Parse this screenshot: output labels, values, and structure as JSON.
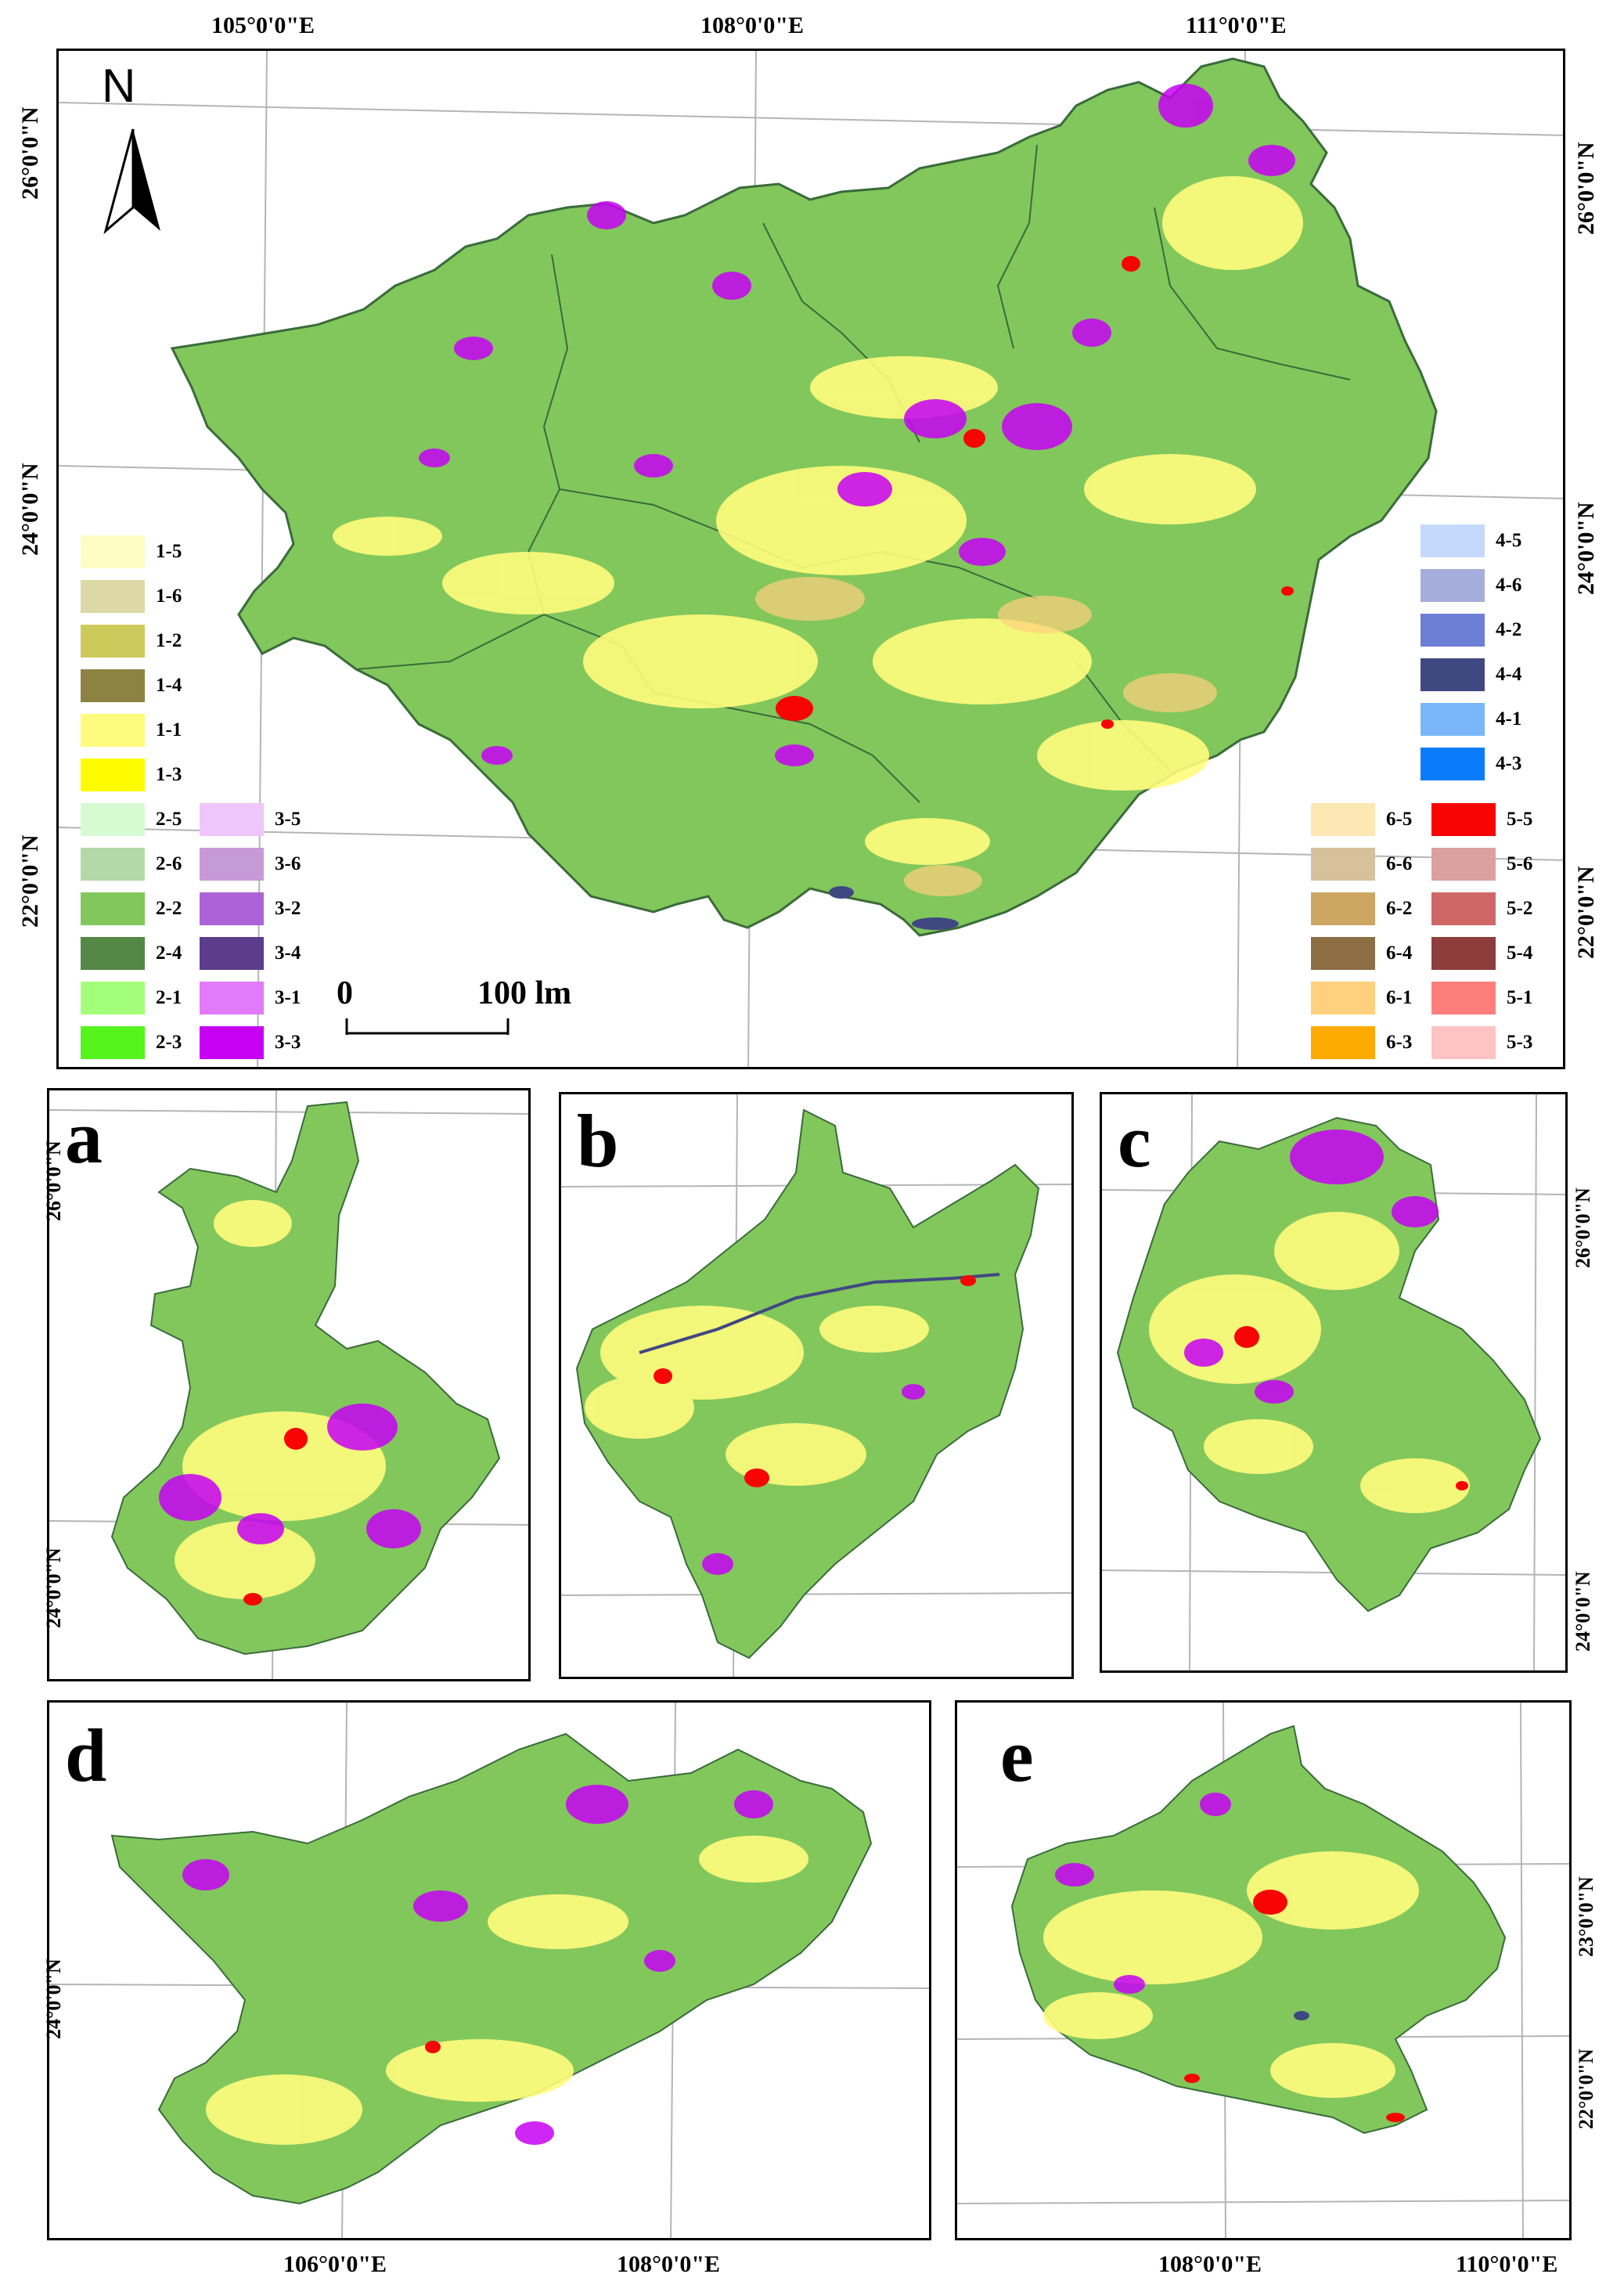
{
  "main_map": {
    "top_lon_labels": [
      "105°0'0\"E",
      "108°0'0\"E",
      "111°0'0\"E"
    ],
    "left_lat_labels": [
      "26°0'0\"N",
      "24°0'0\"N",
      "22°0'0\"N"
    ],
    "right_lat_labels": [
      "26°0'0\"N",
      "24°0'0\"N",
      "22°0'0\"N"
    ],
    "north_arrow_label": "N",
    "scale_bar": {
      "start_label": "0",
      "end_label": "100 lm"
    }
  },
  "legend": {
    "group1": [
      {
        "code": "1-5",
        "color": "#fdfdc4"
      },
      {
        "code": "1-6",
        "color": "#dcd9a6"
      },
      {
        "code": "1-2",
        "color": "#cdca5c"
      },
      {
        "code": "1-4",
        "color": "#8c8342"
      },
      {
        "code": "1-1",
        "color": "#fffc7d"
      },
      {
        "code": "1-3",
        "color": "#fffc00"
      }
    ],
    "group2": [
      {
        "code": "2-5",
        "color": "#d6fad2"
      },
      {
        "code": "2-6",
        "color": "#b5d8a8"
      },
      {
        "code": "2-2",
        "color": "#82c75c"
      },
      {
        "code": "2-4",
        "color": "#548845"
      },
      {
        "code": "2-1",
        "color": "#a3ff7a"
      },
      {
        "code": "2-3",
        "color": "#55f41d"
      }
    ],
    "group3": [
      {
        "code": "3-5",
        "color": "#efc6fb"
      },
      {
        "code": "3-6",
        "color": "#c699d7"
      },
      {
        "code": "3-2",
        "color": "#ac63d8"
      },
      {
        "code": "3-4",
        "color": "#5b3d8c"
      },
      {
        "code": "3-1",
        "color": "#e27bfa"
      },
      {
        "code": "3-3",
        "color": "#c700f4"
      }
    ],
    "group4": [
      {
        "code": "4-5",
        "color": "#c5d9fd"
      },
      {
        "code": "4-6",
        "color": "#a5addb"
      },
      {
        "code": "4-2",
        "color": "#6b7fd5"
      },
      {
        "code": "4-4",
        "color": "#404882"
      },
      {
        "code": "4-1",
        "color": "#7ab6fa"
      },
      {
        "code": "4-3",
        "color": "#0a7cfb"
      }
    ],
    "group6": [
      {
        "code": "6-5",
        "color": "#fde7b2"
      },
      {
        "code": "6-6",
        "color": "#d7c19c"
      },
      {
        "code": "6-2",
        "color": "#cea663"
      },
      {
        "code": "6-4",
        "color": "#8c6d44"
      },
      {
        "code": "6-1",
        "color": "#ffd07d"
      },
      {
        "code": "6-3",
        "color": "#ffaa00"
      }
    ],
    "group5": [
      {
        "code": "5-5",
        "color": "#f80405"
      },
      {
        "code": "5-6",
        "color": "#dca0a0"
      },
      {
        "code": "5-2",
        "color": "#d06767"
      },
      {
        "code": "5-4",
        "color": "#8e3d3d"
      },
      {
        "code": "5-1",
        "color": "#fe7e7e"
      },
      {
        "code": "5-3",
        "color": "#ffc3c3"
      }
    ]
  },
  "subpanels": {
    "a": {
      "letter": "a",
      "lat_labels": [
        "26°0'0\"N",
        "24°0'0\"N"
      ]
    },
    "b": {
      "letter": "b"
    },
    "c": {
      "letter": "c",
      "lat_labels": [
        "26°0'0\"N",
        "24°0'0\"N"
      ]
    },
    "d": {
      "letter": "d",
      "lat_labels": [
        "24°0'0\"N"
      ],
      "lon_labels": [
        "106°0'0\"E",
        "108°0'0\"E"
      ]
    },
    "e": {
      "letter": "e",
      "lat_labels": [
        "23°0'0\"N",
        "22°0'0\"N"
      ],
      "lon_labels": [
        "108°0'0\"E",
        "110°0'0\"E"
      ]
    }
  },
  "colors": {
    "base_green": "#82c75c",
    "boundary": "#3a6b3a",
    "graticule": "#b5b5b5"
  }
}
